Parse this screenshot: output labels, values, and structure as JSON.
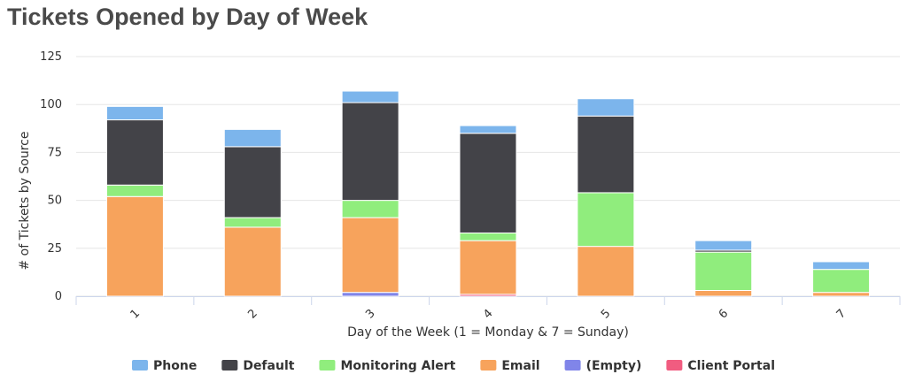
{
  "chart_data": {
    "type": "bar",
    "stacked": true,
    "title": "Tickets Opened by Day of Week",
    "xlabel": "Day of the Week (1 = Monday & 7 = Sunday)",
    "ylabel": "# of Tickets by Source",
    "categories": [
      "1",
      "2",
      "3",
      "4",
      "5",
      "6",
      "7"
    ],
    "ylim": [
      0,
      125
    ],
    "yticks": [
      0,
      25,
      50,
      75,
      100,
      125
    ],
    "grid": true,
    "legend_position": "bottom",
    "series": [
      {
        "name": "Phone",
        "color": "#7cb5ec",
        "values": [
          7,
          9,
          6,
          4,
          9,
          5,
          4
        ]
      },
      {
        "name": "Default",
        "color": "#434348",
        "values": [
          34,
          37,
          51,
          52,
          40,
          1,
          0
        ]
      },
      {
        "name": "Monitoring Alert",
        "color": "#90ed7d",
        "values": [
          6,
          5,
          9,
          4,
          28,
          20,
          12
        ]
      },
      {
        "name": "Email",
        "color": "#f7a35c",
        "values": [
          52,
          36,
          39,
          28,
          26,
          3,
          2
        ]
      },
      {
        "name": "(Empty)",
        "color": "#8085e9",
        "values": [
          0,
          0,
          2,
          0,
          0,
          0,
          0
        ]
      },
      {
        "name": "Client Portal",
        "color": "#f15c80",
        "values": [
          0,
          0,
          0,
          1,
          0,
          0,
          0
        ]
      }
    ]
  }
}
